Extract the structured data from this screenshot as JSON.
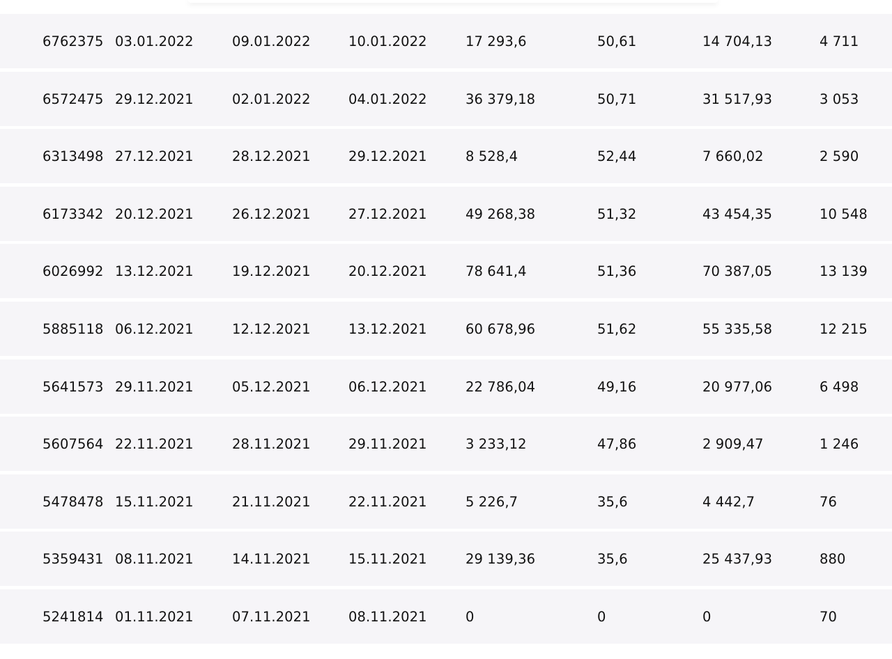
{
  "table": {
    "rows": [
      {
        "id": "6762375",
        "date_from": "03.01.2022",
        "date_to": "09.01.2022",
        "date_pay": "10.01.2022",
        "amount": "17 293,6",
        "rate": "50,61",
        "total": "14 704,13",
        "count": "4 711"
      },
      {
        "id": "6572475",
        "date_from": "29.12.2021",
        "date_to": "02.01.2022",
        "date_pay": "04.01.2022",
        "amount": "36 379,18",
        "rate": "50,71",
        "total": "31 517,93",
        "count": "3 053"
      },
      {
        "id": "6313498",
        "date_from": "27.12.2021",
        "date_to": "28.12.2021",
        "date_pay": "29.12.2021",
        "amount": "8 528,4",
        "rate": "52,44",
        "total": "7 660,02",
        "count": "2 590"
      },
      {
        "id": "6173342",
        "date_from": "20.12.2021",
        "date_to": "26.12.2021",
        "date_pay": "27.12.2021",
        "amount": "49 268,38",
        "rate": "51,32",
        "total": "43 454,35",
        "count": "10 548"
      },
      {
        "id": "6026992",
        "date_from": "13.12.2021",
        "date_to": "19.12.2021",
        "date_pay": "20.12.2021",
        "amount": "78 641,4",
        "rate": "51,36",
        "total": "70 387,05",
        "count": "13 139"
      },
      {
        "id": "5885118",
        "date_from": "06.12.2021",
        "date_to": "12.12.2021",
        "date_pay": "13.12.2021",
        "amount": "60 678,96",
        "rate": "51,62",
        "total": "55 335,58",
        "count": "12 215"
      },
      {
        "id": "5641573",
        "date_from": "29.11.2021",
        "date_to": "05.12.2021",
        "date_pay": "06.12.2021",
        "amount": "22 786,04",
        "rate": "49,16",
        "total": "20 977,06",
        "count": "6 498"
      },
      {
        "id": "5607564",
        "date_from": "22.11.2021",
        "date_to": "28.11.2021",
        "date_pay": "29.11.2021",
        "amount": "3 233,12",
        "rate": "47,86",
        "total": "2 909,47",
        "count": "1 246"
      },
      {
        "id": "5478478",
        "date_from": "15.11.2021",
        "date_to": "21.11.2021",
        "date_pay": "22.11.2021",
        "amount": "5 226,7",
        "rate": "35,6",
        "total": "4 442,7",
        "count": "76"
      },
      {
        "id": "5359431",
        "date_from": "08.11.2021",
        "date_to": "14.11.2021",
        "date_pay": "15.11.2021",
        "amount": "29 139,36",
        "rate": "35,6",
        "total": "25 437,93",
        "count": "880"
      },
      {
        "id": "5241814",
        "date_from": "01.11.2021",
        "date_to": "07.11.2021",
        "date_pay": "08.11.2021",
        "amount": "0",
        "rate": "0",
        "total": "0",
        "count": "70"
      }
    ]
  }
}
